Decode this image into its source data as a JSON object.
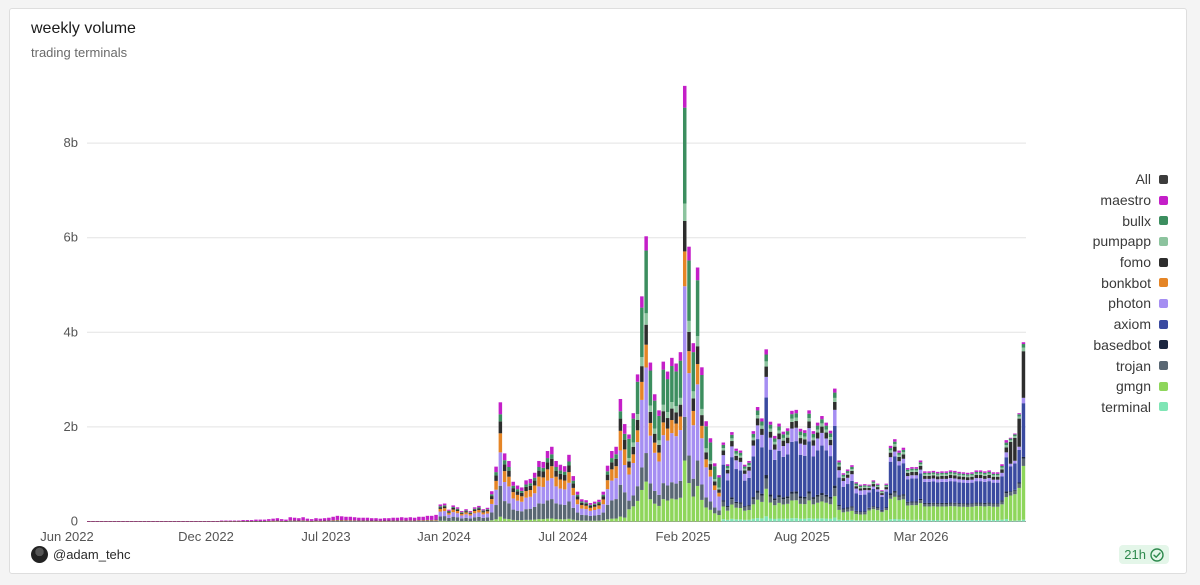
{
  "header": {
    "title": "weekly volume",
    "subtitle": "trading terminals"
  },
  "footer": {
    "author": "@adam_tehc",
    "freshness": "21h"
  },
  "legend": [
    {
      "label": "All",
      "color": "#3c3c3c"
    },
    {
      "label": "maestro",
      "color": "#c41fc8"
    },
    {
      "label": "bullx",
      "color": "#3c8e5f"
    },
    {
      "label": "pumpapp",
      "color": "#8cc39e"
    },
    {
      "label": "fomo",
      "color": "#2d2d2d"
    },
    {
      "label": "bonkbot",
      "color": "#e58526"
    },
    {
      "label": "photon",
      "color": "#a58ef2"
    },
    {
      "label": "axiom",
      "color": "#3a4aa0"
    },
    {
      "label": "basedbot",
      "color": "#1b2640"
    },
    {
      "label": "trojan",
      "color": "#596773"
    },
    {
      "label": "gmgn",
      "color": "#8ed65b"
    },
    {
      "label": "terminal",
      "color": "#7fe5b5"
    }
  ],
  "chart_data": {
    "type": "bar",
    "stacked": true,
    "title": "weekly volume",
    "subtitle": "trading terminals",
    "x_tick_labels": [
      "Jun 2022",
      "Dec 2022",
      "Jul 2023",
      "Jan 2024",
      "Jul 2024",
      "Feb 2025",
      "Aug 2025",
      "Mar 2026"
    ],
    "y_tick_labels": [
      "0",
      "2b",
      "4b",
      "6b",
      "8b"
    ],
    "y_ticks": [
      0,
      2000000000,
      4000000000,
      6000000000,
      8000000000
    ],
    "ylim": [
      0,
      9300000000
    ],
    "grid": true,
    "legend_position": "right",
    "stack_order_bottom_to_top": [
      "terminal",
      "gmgn",
      "trojan",
      "basedbot",
      "axiom",
      "photon",
      "bonkbot",
      "fomo",
      "pumpapp",
      "bullx",
      "maestro"
    ],
    "total_weekly_volume_estimate": [
      0.01,
      0.01,
      0.01,
      0.01,
      0.01,
      0.01,
      0.01,
      0.01,
      0.01,
      0.01,
      0.01,
      0.01,
      0.01,
      0.01,
      0.01,
      0.01,
      0.01,
      0.01,
      0.01,
      0.01,
      0.01,
      0.01,
      0.01,
      0.01,
      0.01,
      0.01,
      0.01,
      0.01,
      0.01,
      0.01,
      0.01,
      0.02,
      0.02,
      0.02,
      0.02,
      0.02,
      0.03,
      0.03,
      0.03,
      0.04,
      0.04,
      0.04,
      0.05,
      0.06,
      0.07,
      0.05,
      0.04,
      0.09,
      0.08,
      0.07,
      0.09,
      0.06,
      0.05,
      0.07,
      0.06,
      0.07,
      0.08,
      0.1,
      0.12,
      0.11,
      0.1,
      0.1,
      0.09,
      0.08,
      0.08,
      0.08,
      0.07,
      0.07,
      0.06,
      0.07,
      0.07,
      0.08,
      0.08,
      0.09,
      0.08,
      0.09,
      0.08,
      0.1,
      0.1,
      0.12,
      0.12,
      0.14,
      0.36,
      0.38,
      0.25,
      0.34,
      0.3,
      0.22,
      0.26,
      0.22,
      0.3,
      0.33,
      0.26,
      0.29,
      0.64,
      1.16,
      2.52,
      1.44,
      1.28,
      0.84,
      0.76,
      0.72,
      0.87,
      0.9,
      1.03,
      1.28,
      1.26,
      1.49,
      1.58,
      1.28,
      1.2,
      1.17,
      1.41,
      0.96,
      0.63,
      0.47,
      0.45,
      0.39,
      0.42,
      0.46,
      0.63,
      1.18,
      1.49,
      1.58,
      2.59,
      2.06,
      1.84,
      2.29,
      3.11,
      4.76,
      6.03,
      3.36,
      2.69,
      2.35,
      3.38,
      3.17,
      3.46,
      3.34,
      3.58,
      9.21,
      5.81,
      3.77,
      5.37,
      3.26,
      2.12,
      1.76,
      1.23,
      0.98,
      1.67,
      1.21,
      1.89,
      1.54,
      1.5,
      1.2,
      1.28,
      1.91,
      2.42,
      2.18,
      3.64,
      2.11,
      1.81,
      2.07,
      1.9,
      1.97,
      2.34,
      2.36,
      1.96,
      1.93,
      2.35,
      1.91,
      2.09,
      2.23,
      2.09,
      1.92,
      2.81,
      1.29,
      1.02,
      1.1,
      1.19,
      0.83,
      0.78,
      0.79,
      0.78,
      0.87,
      0.8,
      0.66,
      0.8,
      1.6,
      1.74,
      1.5,
      1.56,
      1.13,
      1.15,
      1.15,
      1.29,
      1.06,
      1.06,
      1.07,
      1.05,
      1.06,
      1.06,
      1.08,
      1.07,
      1.05,
      1.04,
      1.03,
      1.04,
      1.08,
      1.08,
      1.06,
      1.08,
      1.04,
      1.04,
      1.21,
      1.72,
      1.77,
      1.86,
      2.29,
      3.79
    ]
  }
}
